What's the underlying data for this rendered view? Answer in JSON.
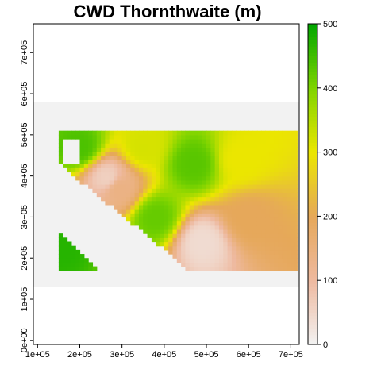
{
  "title": "CWD Thornthwaite (m)",
  "x_axis": {
    "ticks": [
      "1e+05",
      "2e+05",
      "3e+05",
      "4e+05",
      "5e+05",
      "6e+05",
      "7e+05"
    ]
  },
  "y_axis": {
    "ticks": [
      "0e+00",
      "1e+05",
      "2e+05",
      "3e+05",
      "4e+05",
      "5e+05",
      "6e+05",
      "7e+05"
    ]
  },
  "legend": {
    "ticks": [
      "0",
      "100",
      "200",
      "300",
      "400",
      "500"
    ],
    "colors": [
      "#f2f2f2",
      "#eeb99f",
      "#e6a85a",
      "#ebe600",
      "#7fd400",
      "#00a600"
    ]
  },
  "chart_data": {
    "type": "heatmap",
    "title": "CWD Thornthwaite (m)",
    "xlim": [
      90000,
      720000
    ],
    "ylim": [
      -10000,
      770000
    ],
    "value_range": [
      0,
      500
    ],
    "colorbar_ticks": [
      0,
      100,
      200,
      300,
      400,
      500
    ],
    "raster_extent": {
      "x": [
        150000,
        715000
      ],
      "y": [
        170000,
        510000
      ]
    },
    "nodata_band_extent": {
      "x": [
        90000,
        720000
      ],
      "y": [
        130000,
        580000
      ]
    },
    "hotspots": [
      {
        "x": 265000,
        "y": 395000,
        "value": 60
      },
      {
        "x": 290000,
        "y": 370000,
        "value": 140
      },
      {
        "x": 490000,
        "y": 240000,
        "value": 40
      },
      {
        "x": 600000,
        "y": 300000,
        "value": 200
      },
      {
        "x": 580000,
        "y": 440000,
        "value": 300
      },
      {
        "x": 470000,
        "y": 430000,
        "value": 430
      },
      {
        "x": 350000,
        "y": 470000,
        "value": 320
      },
      {
        "x": 200000,
        "y": 470000,
        "value": 440
      },
      {
        "x": 380000,
        "y": 300000,
        "value": 420
      },
      {
        "x": 160000,
        "y": 230000,
        "value": 470
      }
    ],
    "grid": false,
    "legend_position": "right"
  }
}
